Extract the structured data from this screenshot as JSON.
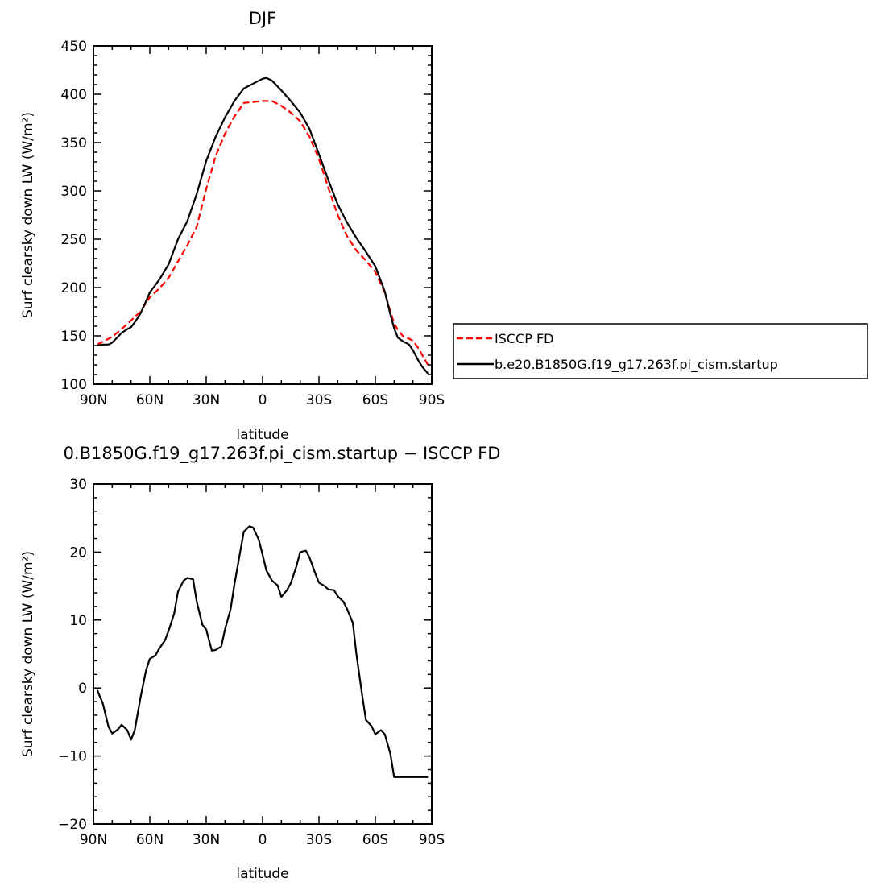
{
  "chart_data": [
    {
      "type": "line",
      "title": "DJF",
      "xlabel": "latitude",
      "ylabel": "Surf clearsky down LW (W/m²)",
      "xlim": [
        90,
        -90
      ],
      "ylim": [
        100,
        450
      ],
      "xticks": [
        90,
        60,
        30,
        0,
        -30,
        -60,
        -90
      ],
      "xticklabels": [
        "90N",
        "60N",
        "30N",
        "0",
        "30S",
        "60S",
        "90S"
      ],
      "yticks": [
        100,
        150,
        200,
        250,
        300,
        350,
        400,
        450
      ],
      "yticklabels": [
        "100",
        "150",
        "200",
        "250",
        "300",
        "350",
        "400",
        "450"
      ],
      "legend_position": "right",
      "series": [
        {
          "name": "ISCCP FD",
          "color": "#ff0000",
          "dash": "dashed",
          "x": [
            88,
            85,
            80,
            75,
            70,
            65,
            60,
            55,
            50,
            45,
            40,
            35,
            30,
            25,
            20,
            15,
            10,
            5,
            0,
            -5,
            -10,
            -15,
            -20,
            -25,
            -30,
            -35,
            -40,
            -45,
            -50,
            -55,
            -60,
            -65,
            -68,
            -70,
            -72,
            -75,
            -78,
            -80,
            -83,
            -85,
            -88
          ],
          "values": [
            141,
            144,
            149,
            157,
            166,
            175,
            190,
            199,
            210,
            227,
            244,
            263,
            302,
            336,
            359,
            377,
            391,
            392,
            393,
            393,
            388,
            381,
            372,
            356,
            333,
            303,
            275,
            253,
            238,
            228,
            216,
            195,
            175,
            163,
            156,
            149,
            147,
            145,
            137,
            130,
            120
          ]
        },
        {
          "name": "b.e20.B1850G.f19_g17.263f.pi_cism.startup",
          "color": "#000000",
          "dash": "solid",
          "x": [
            88,
            85,
            82,
            80,
            78,
            75,
            72,
            70,
            68,
            65,
            62,
            60,
            55,
            50,
            45,
            40,
            35,
            30,
            25,
            20,
            15,
            10,
            5,
            2,
            0,
            -2,
            -5,
            -10,
            -15,
            -20,
            -25,
            -30,
            -35,
            -40,
            -45,
            -50,
            -55,
            -60,
            -65,
            -68,
            -70,
            -72,
            -75,
            -78,
            -80,
            -83,
            -85,
            -88
          ],
          "values": [
            140,
            141,
            141,
            143,
            147,
            153,
            157,
            159,
            164,
            173,
            186,
            195,
            208,
            224,
            250,
            269,
            297,
            331,
            356,
            376,
            393,
            406,
            411,
            414,
            416,
            417,
            414,
            404,
            393,
            381,
            364,
            338,
            311,
            286,
            267,
            251,
            237,
            222,
            196,
            172,
            158,
            148,
            144,
            141,
            135,
            124,
            118,
            111
          ]
        }
      ]
    },
    {
      "type": "line",
      "title": "0.B1850G.f19_g17.263f.pi_cism.startup − ISCCP FD",
      "xlabel": "latitude",
      "ylabel": "Surf clearsky down LW (W/m²)",
      "xlim": [
        90,
        -90
      ],
      "ylim": [
        -20,
        30
      ],
      "xticks": [
        90,
        60,
        30,
        0,
        -30,
        -60,
        -90
      ],
      "xticklabels": [
        "90N",
        "60N",
        "30N",
        "0",
        "30S",
        "60S",
        "90S"
      ],
      "yticks": [
        -20,
        -10,
        0,
        10,
        20,
        30
      ],
      "yticklabels": [
        "−20",
        "−10",
        "0",
        "10",
        "20",
        "30"
      ],
      "series": [
        {
          "color": "#000000",
          "dash": "solid",
          "x": [
            88,
            85,
            82,
            80,
            77,
            75,
            72,
            70,
            68,
            65,
            62,
            60,
            57,
            55,
            52,
            50,
            47,
            45,
            42,
            40,
            37,
            35,
            32,
            30,
            27,
            25,
            22,
            20,
            17,
            15,
            12,
            10,
            7,
            5,
            2,
            0,
            -2,
            -5,
            -8,
            -10,
            -13,
            -15,
            -18,
            -20,
            -23,
            -25,
            -28,
            -30,
            -33,
            -35,
            -38,
            -40,
            -43,
            -45,
            -48,
            -50,
            -53,
            -55,
            -58,
            -60,
            -63,
            -65,
            -68,
            -70,
            -73,
            -75,
            -78,
            -80,
            -83,
            -85,
            -88
          ],
          "values": [
            -0.3,
            -2.3,
            -5.7,
            -6.7,
            -6.1,
            -5.4,
            -6.2,
            -7.6,
            -6.2,
            -1.5,
            2.6,
            4.3,
            4.8,
            5.8,
            7.0,
            8.4,
            11.0,
            14.2,
            15.8,
            16.2,
            16.0,
            12.7,
            9.3,
            8.6,
            5.5,
            5.6,
            6.1,
            8.6,
            11.6,
            15.2,
            19.9,
            23.0,
            23.8,
            23.6,
            21.8,
            19.6,
            17.3,
            15.8,
            15.1,
            13.4,
            14.4,
            15.4,
            17.9,
            20.0,
            20.2,
            19.2,
            16.9,
            15.5,
            15.0,
            14.5,
            14.4,
            13.5,
            12.7,
            11.6,
            9.6,
            4.8,
            -1.1,
            -4.7,
            -5.6,
            -6.8,
            -6.2,
            -6.8,
            -9.7,
            -13.1,
            -13.1,
            -13.1,
            -13.1,
            -13.1,
            -13.1,
            -13.1,
            -13.1
          ]
        }
      ]
    }
  ]
}
